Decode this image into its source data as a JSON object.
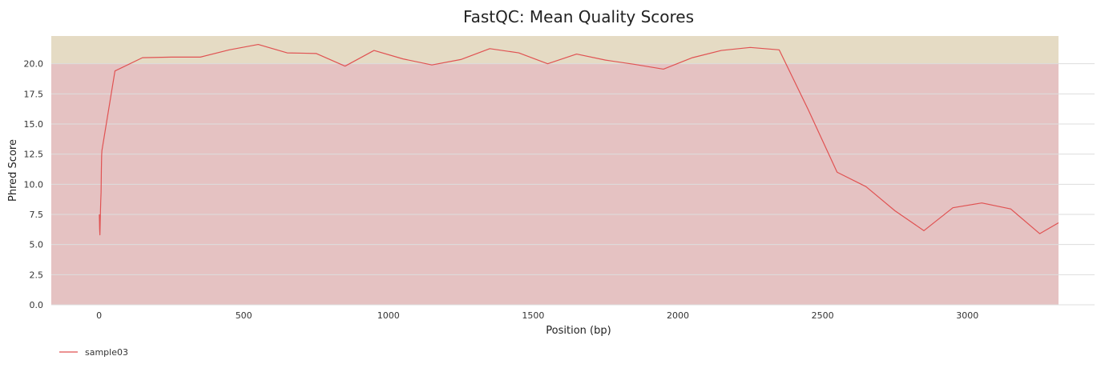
{
  "chart_data": {
    "type": "line",
    "title": "FastQC: Mean Quality Scores",
    "xlabel": "Position (bp)",
    "ylabel": "Phred Score",
    "xlim": [
      -165,
      3315
    ],
    "ylim": [
      0,
      22.3
    ],
    "xticks": [
      0,
      500,
      1000,
      1500,
      2000,
      2500,
      3000
    ],
    "xtick_labels": [
      "0",
      "500",
      "1000",
      "1500",
      "2000",
      "2500",
      "3000"
    ],
    "yticks": [
      0,
      2.5,
      5,
      7.5,
      10,
      12.5,
      15,
      17.5,
      20
    ],
    "ytick_labels": [
      "0.0",
      "2.5",
      "5.0",
      "7.5",
      "10.0",
      "12.5",
      "15.0",
      "17.5",
      "20.0"
    ],
    "grid": true,
    "legend_position": "bottom-left",
    "bands": [
      {
        "y0": 0,
        "y1": 20,
        "color": "#e5c2c2"
      },
      {
        "y0": 20,
        "y1": 22.3,
        "color": "#e5dbc4"
      }
    ],
    "series": [
      {
        "name": "sample03",
        "color": "#e05252",
        "x": [
          1,
          2,
          3,
          4,
          5,
          6,
          7,
          8,
          9,
          10,
          55,
          150,
          250,
          350,
          450,
          550,
          650,
          750,
          850,
          950,
          1050,
          1150,
          1250,
          1350,
          1450,
          1550,
          1650,
          1750,
          1850,
          1950,
          2050,
          2150,
          2250,
          2350,
          2450,
          2550,
          2650,
          2750,
          2850,
          2950,
          3050,
          3150,
          3250,
          3315
        ],
        "y": [
          7.5,
          6.3,
          5.8,
          6.8,
          7.9,
          8.7,
          9.3,
          11.2,
          12.4,
          12.8,
          19.4,
          20.5,
          20.55,
          20.55,
          21.15,
          21.6,
          20.9,
          20.85,
          19.8,
          21.1,
          20.4,
          19.9,
          20.35,
          21.25,
          20.9,
          20.0,
          20.8,
          20.3,
          19.95,
          19.55,
          20.5,
          21.1,
          21.35,
          21.15,
          16.2,
          11.0,
          9.8,
          7.8,
          6.15,
          8.05,
          8.45,
          7.95,
          5.9,
          6.8
        ]
      }
    ]
  }
}
